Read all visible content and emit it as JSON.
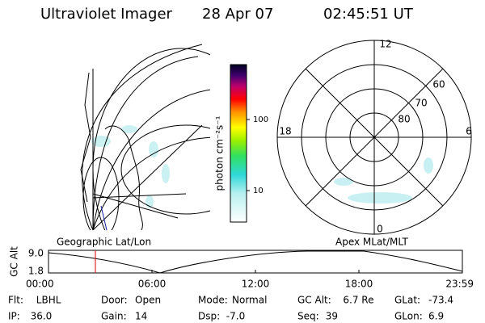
{
  "header": {
    "title": "Ultraviolet Imager",
    "date": "28 Apr 07",
    "time": "02:45:51 UT"
  },
  "colorbar": {
    "label": "photon cm⁻²s⁻¹",
    "ticks": [
      "100",
      "10"
    ]
  },
  "polar": {
    "mlt_labels": [
      "12",
      "6",
      "18",
      "0"
    ],
    "lat_labels": [
      "60",
      "70",
      "80"
    ]
  },
  "panels": {
    "left": "Geographic Lat/Lon",
    "right": "Apex MLat/MLT"
  },
  "altitude_plot": {
    "ylabel": "GC Alt",
    "yticks": [
      "9.0",
      "1.8"
    ],
    "xticks": [
      "00:00",
      "06:00",
      "12:00",
      "18:00",
      "23:59"
    ]
  },
  "footer": [
    [
      {
        "label": "Flt:",
        "value": "LBHL"
      },
      {
        "label": "Door:",
        "value": "Open"
      },
      {
        "label": "Mode:",
        "value": "Normal"
      },
      {
        "label": "GC Alt:",
        "value": "6.7 Re"
      },
      {
        "label": "GLat:",
        "value": "-73.4"
      }
    ],
    [
      {
        "label": "IP:",
        "value": "36.0"
      },
      {
        "label": "Gain:",
        "value": "14"
      },
      {
        "label": "Dsp:",
        "value": "-7.0"
      },
      {
        "label": "Seq:",
        "value": "39"
      },
      {
        "label": "GLon:",
        "value": "6.9"
      }
    ]
  ]
}
